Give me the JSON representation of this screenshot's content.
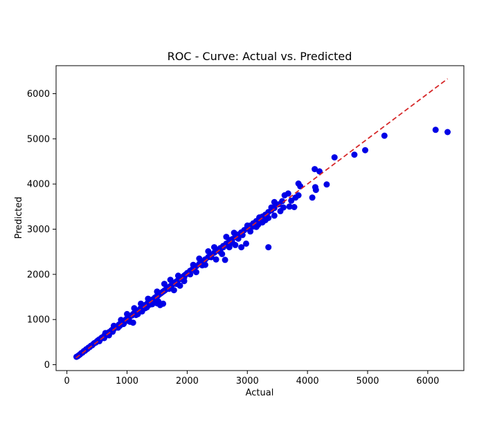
{
  "chart_data": {
    "type": "scatter",
    "title": "ROC - Curve: Actual vs. Predicted",
    "xlabel": "Actual",
    "ylabel": "Predicted",
    "xlim": [
      -180,
      6600
    ],
    "ylim": [
      -130,
      6620
    ],
    "xticks": [
      0,
      1000,
      2000,
      3000,
      4000,
      5000,
      6000
    ],
    "yticks": [
      0,
      1000,
      2000,
      3000,
      4000,
      5000,
      6000
    ],
    "grid": false,
    "colors": {
      "points": "#0000e6",
      "reference_line": "#d62728"
    },
    "reference_line": {
      "style": "dashed",
      "from": [
        150,
        150
      ],
      "to": [
        6330,
        6330
      ]
    },
    "series": [
      {
        "points": [
          [
            160,
            175
          ],
          [
            180,
            190
          ],
          [
            200,
            210
          ],
          [
            220,
            230
          ],
          [
            240,
            255
          ],
          [
            260,
            270
          ],
          [
            280,
            300
          ],
          [
            300,
            310
          ],
          [
            320,
            340
          ],
          [
            340,
            350
          ],
          [
            360,
            380
          ],
          [
            380,
            390
          ],
          [
            400,
            420
          ],
          [
            420,
            430
          ],
          [
            440,
            460
          ],
          [
            460,
            480
          ],
          [
            480,
            490
          ],
          [
            500,
            520
          ],
          [
            520,
            540
          ],
          [
            540,
            560
          ],
          [
            560,
            570
          ],
          [
            580,
            600
          ],
          [
            600,
            610
          ],
          [
            620,
            640
          ],
          [
            640,
            660
          ],
          [
            660,
            670
          ],
          [
            680,
            700
          ],
          [
            700,
            720
          ],
          [
            720,
            730
          ],
          [
            740,
            760
          ],
          [
            760,
            780
          ],
          [
            780,
            790
          ],
          [
            800,
            820
          ],
          [
            820,
            840
          ],
          [
            840,
            850
          ],
          [
            860,
            880
          ],
          [
            880,
            900
          ],
          [
            900,
            910
          ],
          [
            920,
            940
          ],
          [
            940,
            960
          ],
          [
            960,
            970
          ],
          [
            980,
            1000
          ],
          [
            1000,
            1020
          ],
          [
            1020,
            1030
          ],
          [
            1040,
            1060
          ],
          [
            1060,
            1080
          ],
          [
            1080,
            1090
          ],
          [
            1100,
            1120
          ],
          [
            1120,
            1140
          ],
          [
            1140,
            1150
          ],
          [
            1160,
            1180
          ],
          [
            1180,
            1200
          ],
          [
            1200,
            1210
          ],
          [
            1220,
            1240
          ],
          [
            1240,
            1260
          ],
          [
            1260,
            1270
          ],
          [
            1280,
            1300
          ],
          [
            1300,
            1320
          ],
          [
            1320,
            1330
          ],
          [
            1340,
            1360
          ],
          [
            1360,
            1380
          ],
          [
            1380,
            1390
          ],
          [
            1400,
            1420
          ],
          [
            1420,
            1440
          ],
          [
            1440,
            1450
          ],
          [
            1460,
            1480
          ],
          [
            1480,
            1500
          ],
          [
            1500,
            1510
          ],
          [
            1520,
            1540
          ],
          [
            1540,
            1560
          ],
          [
            1560,
            1580
          ],
          [
            1580,
            1600
          ],
          [
            1600,
            1620
          ],
          [
            1620,
            1640
          ],
          [
            1640,
            1660
          ],
          [
            1660,
            1680
          ],
          [
            1680,
            1700
          ],
          [
            1700,
            1720
          ],
          [
            1720,
            1740
          ],
          [
            1740,
            1760
          ],
          [
            1760,
            1780
          ],
          [
            1780,
            1800
          ],
          [
            1800,
            1820
          ],
          [
            1820,
            1840
          ],
          [
            1840,
            1860
          ],
          [
            1860,
            1880
          ],
          [
            1880,
            1900
          ],
          [
            1900,
            1920
          ],
          [
            1920,
            1940
          ],
          [
            1940,
            1960
          ],
          [
            1960,
            1980
          ],
          [
            1980,
            2000
          ],
          [
            2000,
            2030
          ],
          [
            2050,
            2080
          ],
          [
            2100,
            2130
          ],
          [
            2150,
            2180
          ],
          [
            2200,
            2230
          ],
          [
            2250,
            2280
          ],
          [
            2300,
            2330
          ],
          [
            2350,
            2380
          ],
          [
            2400,
            2430
          ],
          [
            2450,
            2480
          ],
          [
            2500,
            2530
          ],
          [
            2550,
            2580
          ],
          [
            2600,
            2630
          ],
          [
            2650,
            2680
          ],
          [
            2700,
            2730
          ],
          [
            2750,
            2780
          ],
          [
            2800,
            2830
          ],
          [
            2850,
            2880
          ],
          [
            2900,
            2930
          ],
          [
            2950,
            2980
          ],
          [
            3000,
            3030
          ],
          [
            3050,
            3080
          ],
          [
            3100,
            3130
          ],
          [
            3150,
            3180
          ],
          [
            3200,
            3230
          ],
          [
            3250,
            3280
          ],
          [
            3300,
            3320
          ],
          [
            3350,
            3380
          ],
          [
            3400,
            3420
          ],
          [
            3450,
            3470
          ],
          [
            540,
            520
          ],
          [
            620,
            590
          ],
          [
            700,
            650
          ],
          [
            760,
            730
          ],
          [
            850,
            820
          ],
          [
            940,
            900
          ],
          [
            1050,
            950
          ],
          [
            1100,
            930
          ],
          [
            1040,
            960
          ],
          [
            1180,
            1120
          ],
          [
            1250,
            1180
          ],
          [
            1330,
            1270
          ],
          [
            1420,
            1340
          ],
          [
            1500,
            1360
          ],
          [
            1550,
            1320
          ],
          [
            1600,
            1350
          ],
          [
            1520,
            1400
          ],
          [
            1780,
            1650
          ],
          [
            1880,
            1750
          ],
          [
            1950,
            1850
          ],
          [
            2050,
            2000
          ],
          [
            2150,
            2050
          ],
          [
            2300,
            2210
          ],
          [
            2480,
            2330
          ],
          [
            2580,
            2450
          ],
          [
            2630,
            2320
          ],
          [
            2700,
            2600
          ],
          [
            2800,
            2650
          ],
          [
            2900,
            2600
          ],
          [
            2980,
            2680
          ],
          [
            3050,
            2950
          ],
          [
            3150,
            3050
          ],
          [
            3250,
            3150
          ],
          [
            3350,
            3250
          ],
          [
            3450,
            3300
          ],
          [
            3550,
            3400
          ],
          [
            3350,
            2600
          ],
          [
            3600,
            3480
          ],
          [
            3700,
            3500
          ],
          [
            3780,
            3490
          ],
          [
            640,
            700
          ],
          [
            780,
            860
          ],
          [
            900,
            990
          ],
          [
            1000,
            1120
          ],
          [
            1120,
            1250
          ],
          [
            1230,
            1350
          ],
          [
            1350,
            1460
          ],
          [
            1500,
            1620
          ],
          [
            1620,
            1790
          ],
          [
            1720,
            1880
          ],
          [
            1850,
            1970
          ],
          [
            2100,
            2210
          ],
          [
            2200,
            2350
          ],
          [
            2350,
            2510
          ],
          [
            2450,
            2600
          ],
          [
            2650,
            2830
          ],
          [
            2780,
            2920
          ],
          [
            3000,
            3080
          ],
          [
            3200,
            3260
          ],
          [
            3400,
            3480
          ],
          [
            3450,
            3600
          ],
          [
            3620,
            3750
          ],
          [
            3680,
            3790
          ],
          [
            3850,
            4010
          ],
          [
            3880,
            3950
          ],
          [
            3520,
            3550
          ],
          [
            3580,
            3620
          ],
          [
            3730,
            3630
          ],
          [
            3850,
            3750
          ],
          [
            3800,
            3700
          ],
          [
            4080,
            3700
          ],
          [
            4120,
            4330
          ],
          [
            4130,
            3930
          ],
          [
            4140,
            3870
          ],
          [
            4200,
            4280
          ],
          [
            4320,
            3990
          ],
          [
            4450,
            4590
          ],
          [
            4780,
            4650
          ],
          [
            4960,
            4750
          ],
          [
            5280,
            5070
          ],
          [
            6130,
            5200
          ],
          [
            6330,
            5150
          ],
          [
            2250,
            2200
          ],
          [
            2400,
            2380
          ],
          [
            2550,
            2500
          ],
          [
            2720,
            2760
          ],
          [
            2850,
            2790
          ],
          [
            2920,
            2870
          ],
          [
            3100,
            3060
          ],
          [
            3180,
            3100
          ],
          [
            1300,
            1250
          ],
          [
            1380,
            1330
          ],
          [
            1450,
            1410
          ],
          [
            1150,
            1100
          ],
          [
            950,
            920
          ],
          [
            880,
            860
          ],
          [
            1700,
            1680
          ],
          [
            1820,
            1790
          ],
          [
            1950,
            1930
          ],
          [
            2080,
            2100
          ],
          [
            2600,
            2600
          ],
          [
            2750,
            2700
          ],
          [
            3300,
            3200
          ]
        ]
      }
    ]
  }
}
